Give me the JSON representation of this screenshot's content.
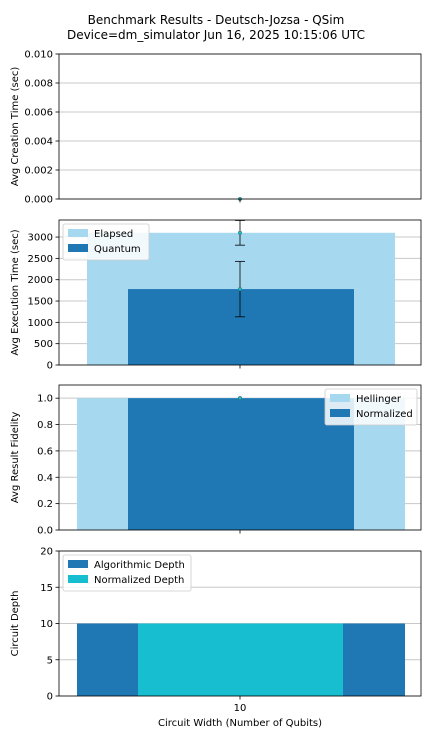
{
  "title": "Benchmark Results - Deutsch-Jozsa - QSim",
  "subtitle": "Device=dm_simulator  Jun 16, 2025 10:15:06 UTC",
  "colors": {
    "light_blue": "#a6d8ef",
    "dark_blue": "#1f77b4",
    "cyan": "#17becf",
    "grid": "#c8c8c8",
    "marker": "#17becf"
  },
  "chart_data": [
    {
      "type": "scatter",
      "ylabel": "Avg Creation Time (sec)",
      "x_categories": [
        "10"
      ],
      "ylim": [
        0,
        0.01
      ],
      "yticks": [
        "0.000",
        "0.002",
        "0.004",
        "0.006",
        "0.008",
        "0.010"
      ],
      "grid": true,
      "series": [
        {
          "values": [
            0.0
          ]
        }
      ]
    },
    {
      "type": "bar",
      "ylabel": "Avg Execution Time (sec)",
      "x_categories": [
        "10"
      ],
      "ylim": [
        0,
        3400
      ],
      "yticks": [
        "0",
        "500",
        "1000",
        "1500",
        "2000",
        "2500",
        "3000"
      ],
      "grid": true,
      "legend": "top-left",
      "series": [
        {
          "name": "Elapsed",
          "values": [
            3100
          ],
          "error": [
            290
          ]
        },
        {
          "name": "Quantum",
          "values": [
            1780
          ],
          "error": [
            650
          ]
        }
      ]
    },
    {
      "type": "bar",
      "ylabel": "Avg Result Fidelity",
      "x_categories": [
        "10"
      ],
      "ylim": [
        0,
        1.1
      ],
      "yticks": [
        "0.0",
        "0.2",
        "0.4",
        "0.6",
        "0.8",
        "1.0"
      ],
      "grid": true,
      "legend": "top-right",
      "series": [
        {
          "name": "Hellinger",
          "values": [
            1.0
          ]
        },
        {
          "name": "Normalized",
          "values": [
            1.0
          ]
        }
      ]
    },
    {
      "type": "bar",
      "ylabel": "Circuit Depth",
      "xlabel": "Circuit Width (Number of Qubits)",
      "x_categories": [
        "10"
      ],
      "ylim": [
        0,
        20
      ],
      "yticks": [
        "0",
        "5",
        "10",
        "15",
        "20"
      ],
      "grid": true,
      "legend": "top-left",
      "series": [
        {
          "name": "Algorithmic Depth",
          "values": [
            10
          ]
        },
        {
          "name": "Normalized Depth",
          "values": [
            10
          ]
        }
      ]
    }
  ]
}
